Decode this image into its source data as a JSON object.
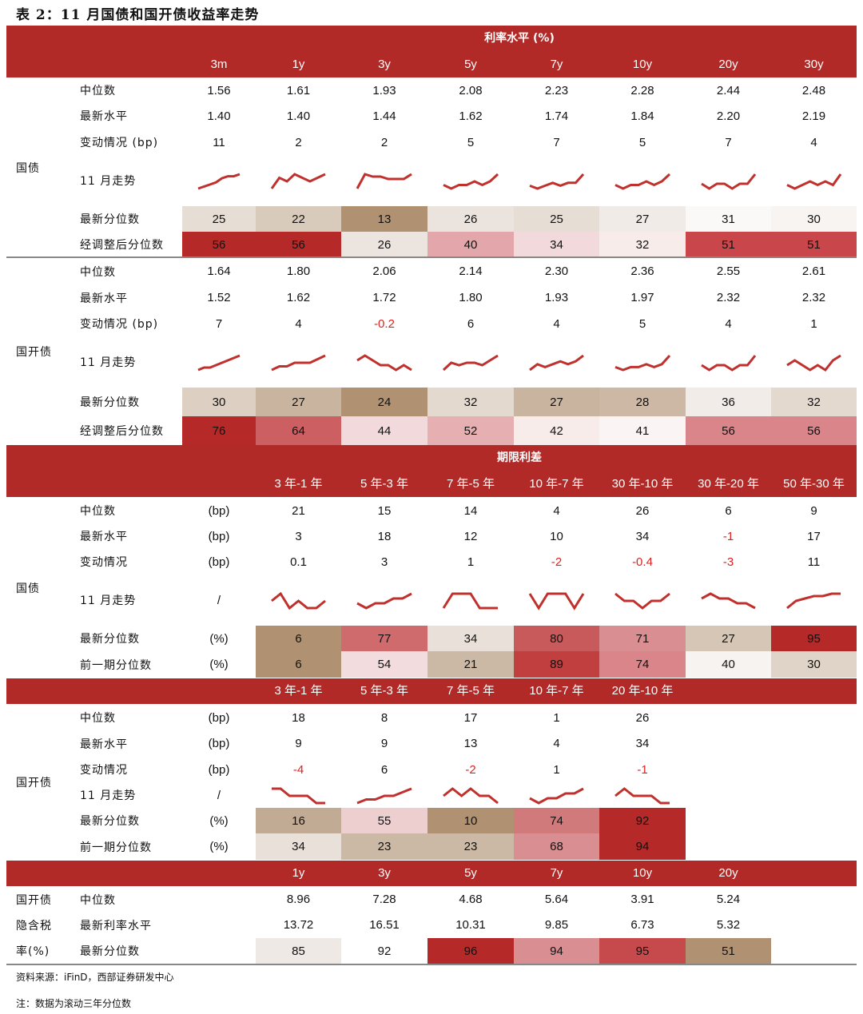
{
  "title": "表 2：11 月国债和国开债收益率走势",
  "colors": {
    "header": "#b22a27",
    "negative": "#e02020"
  },
  "sec1": {
    "title": "利率水平 (%)",
    "cols": [
      "3m",
      "1y",
      "3y",
      "5y",
      "7y",
      "10y",
      "20y",
      "30y"
    ],
    "groups": [
      {
        "name": "国债",
        "rows": [
          {
            "label": "中位数",
            "values": [
              "1.56",
              "1.61",
              "1.93",
              "2.08",
              "2.23",
              "2.28",
              "2.44",
              "2.48"
            ]
          },
          {
            "label": "最新水平",
            "values": [
              "1.40",
              "1.40",
              "1.44",
              "1.62",
              "1.74",
              "1.84",
              "2.20",
              "2.19"
            ]
          },
          {
            "label": "变动情况 (bp)",
            "values": [
              "11",
              "2",
              "2",
              "5",
              "7",
              "5",
              "7",
              "4"
            ]
          },
          {
            "label": "11 月走势",
            "spark": [
              [
                0,
                1,
                2,
                3,
                5,
                6,
                6,
                7
              ],
              [
                3,
                6,
                5,
                7,
                6,
                5,
                6,
                7
              ],
              [
                0,
                6,
                5,
                5,
                4,
                4,
                4,
                6
              ],
              [
                2,
                1,
                2,
                2,
                3,
                2,
                3,
                5
              ],
              [
                2,
                1,
                2,
                3,
                2,
                3,
                3,
                6
              ],
              [
                3,
                2,
                3,
                3,
                4,
                3,
                4,
                6
              ],
              [
                2,
                1,
                2,
                2,
                1,
                2,
                2,
                4
              ],
              [
                2,
                1,
                2,
                3,
                2,
                3,
                2,
                5
              ]
            ]
          },
          {
            "label": "最新分位数",
            "values": [
              "25",
              "22",
              "13",
              "26",
              "25",
              "27",
              "31",
              "30"
            ],
            "bg": [
              "#e6ddd4",
              "#d9cbbb",
              "#b09273",
              "#ebe3dd",
              "#e6ddd4",
              "#f0ebe7",
              "#fbf9f8",
              "#f7f4f2"
            ]
          },
          {
            "label": "经调整后分位数",
            "values": [
              "56",
              "56",
              "26",
              "40",
              "34",
              "32",
              "51",
              "51"
            ],
            "bg": [
              "#b52a28",
              "#b52a28",
              "#ece4de",
              "#e3a7ab",
              "#f2dadc",
              "#f8eceb",
              "#c9474a",
              "#c9474a"
            ]
          }
        ]
      },
      {
        "name": "国开债",
        "rows": [
          {
            "label": "中位数",
            "values": [
              "1.64",
              "1.80",
              "2.06",
              "2.14",
              "2.30",
              "2.36",
              "2.55",
              "2.61"
            ]
          },
          {
            "label": "最新水平",
            "values": [
              "1.52",
              "1.62",
              "1.72",
              "1.80",
              "1.93",
              "1.97",
              "2.32",
              "2.32"
            ]
          },
          {
            "label": "变动情况 (bp)",
            "values": [
              "7",
              "4",
              "-0.2",
              "6",
              "4",
              "5",
              "4",
              "1"
            ]
          },
          {
            "label": "11 月走势",
            "spark": [
              [
                0,
                1,
                1,
                2,
                3,
                4,
                5,
                6
              ],
              [
                2,
                3,
                3,
                4,
                4,
                4,
                5,
                6
              ],
              [
                6,
                7,
                6,
                5,
                5,
                4,
                5,
                4
              ],
              [
                0,
                3,
                2,
                3,
                3,
                2,
                4,
                6
              ],
              [
                1,
                3,
                2,
                3,
                4,
                3,
                4,
                6
              ],
              [
                4,
                3,
                4,
                4,
                5,
                4,
                5,
                8
              ],
              [
                2,
                1,
                2,
                2,
                1,
                2,
                2,
                4
              ],
              [
                3,
                4,
                3,
                2,
                3,
                2,
                4,
                5
              ]
            ]
          },
          {
            "label": "最新分位数",
            "values": [
              "30",
              "27",
              "24",
              "32",
              "27",
              "28",
              "36",
              "32"
            ],
            "bg": [
              "#ddd0c3",
              "#c9b49f",
              "#b09273",
              "#e3d9cf",
              "#c9b49f",
              "#ccb8a4",
              "#f1ece8",
              "#e3d9cf"
            ]
          },
          {
            "label": "经调整后分位数",
            "values": [
              "76",
              "64",
              "44",
              "52",
              "42",
              "41",
              "56",
              "56"
            ],
            "bg": [
              "#b52a28",
              "#cc5f62",
              "#f2dadc",
              "#e6afb2",
              "#f8eceb",
              "#fbf4f4",
              "#d98589",
              "#d98589"
            ]
          }
        ]
      }
    ]
  },
  "sec2": {
    "title": "期限利差",
    "cols": [
      "3 年-1 年",
      "5 年-3 年",
      "7 年-5 年",
      "10 年-7 年",
      "30 年-10 年",
      "30 年-20 年",
      "50 年-30 年"
    ],
    "name": "国债",
    "rows": [
      {
        "label": "中位数",
        "unit": "(bp)",
        "values": [
          "21",
          "15",
          "14",
          "4",
          "26",
          "6",
          "9"
        ]
      },
      {
        "label": "最新水平",
        "unit": "(bp)",
        "values": [
          "3",
          "18",
          "12",
          "10",
          "34",
          "-1",
          "17"
        ]
      },
      {
        "label": "变动情况",
        "unit": "(bp)",
        "values": [
          "0.1",
          "3",
          "1",
          "-2",
          "-0.4",
          "-3",
          "11"
        ]
      },
      {
        "label": "11 月走势",
        "unit": "/",
        "spark": [
          [
            5,
            6,
            4,
            5,
            4,
            4,
            5
          ],
          [
            4,
            3,
            4,
            4,
            5,
            5,
            6
          ],
          [
            4,
            5,
            5,
            5,
            4,
            4,
            4
          ],
          [
            4,
            3,
            4,
            4,
            4,
            3,
            4
          ],
          [
            4,
            3,
            3,
            2,
            3,
            3,
            4
          ],
          [
            4,
            5,
            4,
            4,
            3,
            3,
            2
          ],
          [
            0,
            3,
            4,
            5,
            5,
            6,
            6
          ]
        ]
      },
      {
        "label": "最新分位数",
        "unit": "(%)",
        "values": [
          "6",
          "77",
          "34",
          "80",
          "71",
          "27",
          "95"
        ],
        "bg": [
          "#b09273",
          "#cf6b6d",
          "#e9e1d9",
          "#c95a5c",
          "#d98e91",
          "#d6c6b6",
          "#b52a28"
        ]
      },
      {
        "label": "前一期分位数",
        "unit": "(%)",
        "values": [
          "6",
          "54",
          "21",
          "89",
          "74",
          "40",
          "30"
        ],
        "bg": [
          "#b09273",
          "#f3dcdd",
          "#cbb9a6",
          "#c23f3f",
          "#d98589",
          "#f6f3f0",
          "#e0d4c8"
        ]
      }
    ]
  },
  "sec3": {
    "cols": [
      "3 年-1 年",
      "5 年-3 年",
      "7 年-5 年",
      "10 年-7 年",
      "20 年-10 年"
    ],
    "name": "国开债",
    "rows": [
      {
        "label": "中位数",
        "unit": "(bp)",
        "values": [
          "18",
          "8",
          "17",
          "1",
          "26"
        ]
      },
      {
        "label": "最新水平",
        "unit": "(bp)",
        "values": [
          "9",
          "9",
          "13",
          "4",
          "34"
        ]
      },
      {
        "label": "变动情况",
        "unit": "(bp)",
        "values": [
          "-4",
          "6",
          "-2",
          "1",
          "-1"
        ]
      },
      {
        "label": "11 月走势",
        "unit": "/",
        "spark": [
          [
            5,
            5,
            4,
            4,
            4,
            3,
            3
          ],
          [
            2,
            3,
            3,
            4,
            4,
            5,
            6
          ],
          [
            5,
            6,
            5,
            6,
            5,
            5,
            4
          ],
          [
            2,
            1,
            2,
            2,
            3,
            3,
            4
          ],
          [
            4,
            5,
            4,
            4,
            4,
            3,
            3
          ]
        ]
      },
      {
        "label": "最新分位数",
        "unit": "(%)",
        "values": [
          "16",
          "55",
          "10",
          "74",
          "92"
        ],
        "bg": [
          "#c2ab94",
          "#eecfd0",
          "#b09273",
          "#d07a7c",
          "#b52a28"
        ]
      },
      {
        "label": "前一期分位数",
        "unit": "(%)",
        "values": [
          "34",
          "23",
          "23",
          "68",
          "94"
        ],
        "bg": [
          "#e9e1d9",
          "#cbb9a6",
          "#cbb9a6",
          "#d98e91",
          "#b52a28"
        ]
      }
    ]
  },
  "sec4": {
    "cols": [
      "1y",
      "3y",
      "5y",
      "7y",
      "10y",
      "20y"
    ],
    "name_lines": [
      "国开债",
      "隐含税",
      "率(%)"
    ],
    "rows": [
      {
        "label": "中位数",
        "values": [
          "8.96",
          "7.28",
          "4.68",
          "5.64",
          "3.91",
          "5.24"
        ]
      },
      {
        "label": "最新利率水平",
        "values": [
          "13.72",
          "16.51",
          "10.31",
          "9.85",
          "6.73",
          "5.32"
        ]
      },
      {
        "label": "最新分位数",
        "values": [
          "85",
          "92",
          "96",
          "94",
          "95",
          "51"
        ],
        "bg": [
          "#efe9e5",
          "#ffffff",
          "#b52a28",
          "#d98e91",
          "#c64a4c",
          "#b09273"
        ]
      }
    ]
  },
  "source": "资料来源：iFinD，西部证券研发中心",
  "note": "注：数据为滚动三年分位数"
}
